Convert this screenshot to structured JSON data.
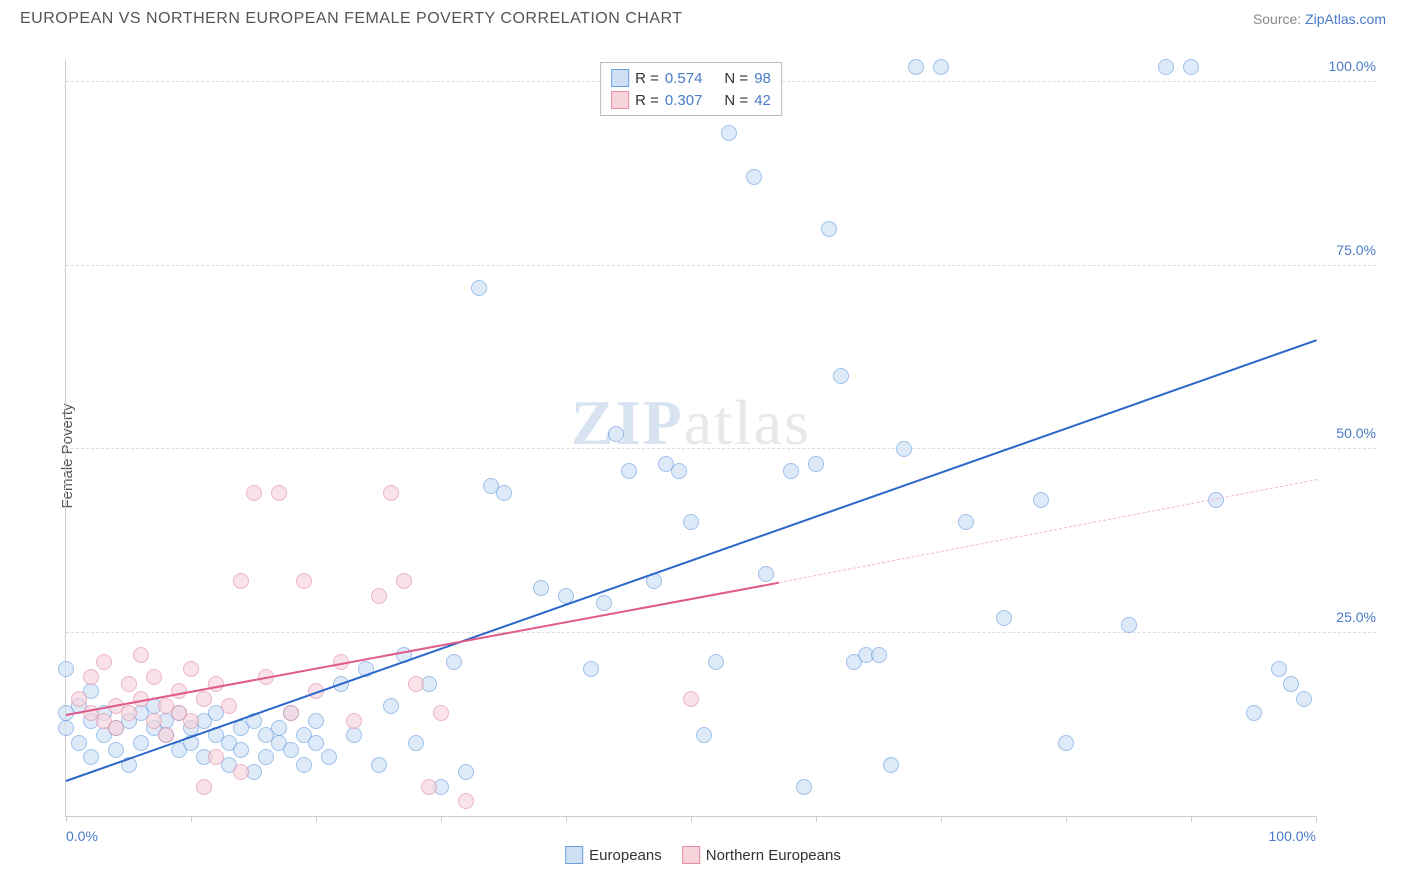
{
  "header": {
    "title": "EUROPEAN VS NORTHERN EUROPEAN FEMALE POVERTY CORRELATION CHART",
    "source_prefix": "Source: ",
    "source_link": "ZipAtlas.com"
  },
  "watermark": {
    "part1": "ZIP",
    "part2": "atlas"
  },
  "chart": {
    "type": "scatter",
    "ylabel": "Female Poverty",
    "background_color": "#ffffff",
    "grid_color": "#dddddd",
    "axis_color": "#cccccc",
    "xlim": [
      0,
      100
    ],
    "ylim": [
      0,
      103
    ],
    "xticks_minor": [
      0,
      10,
      20,
      30,
      40,
      50,
      60,
      70,
      80,
      90,
      100
    ],
    "xtick_labels": [
      {
        "x": 0,
        "label": "0.0%",
        "align": "left"
      },
      {
        "x": 100,
        "label": "100.0%",
        "align": "right"
      }
    ],
    "yticks": [
      {
        "y": 25,
        "label": "25.0%"
      },
      {
        "y": 50,
        "label": "50.0%"
      },
      {
        "y": 75,
        "label": "75.0%"
      },
      {
        "y": 100,
        "label": "100.0%"
      }
    ],
    "marker_radius": 8,
    "marker_border_width": 1.2,
    "series": [
      {
        "key": "europeans",
        "label": "Europeans",
        "fill": "#cfe0f5",
        "stroke": "#6a9fe0",
        "fill_opacity": 0.65,
        "R": "0.574",
        "N": "98",
        "trend": {
          "x1": 0,
          "y1": 5,
          "x2": 100,
          "y2": 65,
          "color": "#2b67c9",
          "width": 2
        },
        "points": [
          [
            0,
            20
          ],
          [
            0,
            12
          ],
          [
            0,
            14
          ],
          [
            1,
            15
          ],
          [
            1,
            10
          ],
          [
            2,
            13
          ],
          [
            2,
            17
          ],
          [
            2,
            8
          ],
          [
            3,
            11
          ],
          [
            3,
            14
          ],
          [
            4,
            12
          ],
          [
            4,
            9
          ],
          [
            5,
            13
          ],
          [
            5,
            7
          ],
          [
            6,
            14
          ],
          [
            6,
            10
          ],
          [
            7,
            12
          ],
          [
            7,
            15
          ],
          [
            8,
            11
          ],
          [
            8,
            13
          ],
          [
            9,
            14
          ],
          [
            9,
            9
          ],
          [
            10,
            12
          ],
          [
            10,
            10
          ],
          [
            11,
            13
          ],
          [
            11,
            8
          ],
          [
            12,
            14
          ],
          [
            12,
            11
          ],
          [
            13,
            10
          ],
          [
            13,
            7
          ],
          [
            14,
            12
          ],
          [
            14,
            9
          ],
          [
            15,
            13
          ],
          [
            15,
            6
          ],
          [
            16,
            11
          ],
          [
            16,
            8
          ],
          [
            17,
            12
          ],
          [
            17,
            10
          ],
          [
            18,
            9
          ],
          [
            18,
            14
          ],
          [
            19,
            11
          ],
          [
            19,
            7
          ],
          [
            20,
            10
          ],
          [
            20,
            13
          ],
          [
            21,
            8
          ],
          [
            22,
            18
          ],
          [
            23,
            11
          ],
          [
            24,
            20
          ],
          [
            25,
            7
          ],
          [
            26,
            15
          ],
          [
            27,
            22
          ],
          [
            28,
            10
          ],
          [
            29,
            18
          ],
          [
            30,
            4
          ],
          [
            31,
            21
          ],
          [
            32,
            6
          ],
          [
            33,
            72
          ],
          [
            34,
            45
          ],
          [
            35,
            44
          ],
          [
            38,
            31
          ],
          [
            40,
            30
          ],
          [
            42,
            20
          ],
          [
            43,
            29
          ],
          [
            44,
            52
          ],
          [
            45,
            47
          ],
          [
            47,
            32
          ],
          [
            48,
            48
          ],
          [
            49,
            47
          ],
          [
            50,
            40
          ],
          [
            51,
            11
          ],
          [
            52,
            21
          ],
          [
            53,
            93
          ],
          [
            55,
            87
          ],
          [
            56,
            33
          ],
          [
            58,
            47
          ],
          [
            59,
            4
          ],
          [
            60,
            48
          ],
          [
            61,
            80
          ],
          [
            62,
            60
          ],
          [
            63,
            21
          ],
          [
            64,
            22
          ],
          [
            65,
            22
          ],
          [
            66,
            7
          ],
          [
            67,
            50
          ],
          [
            68,
            102
          ],
          [
            70,
            102
          ],
          [
            72,
            40
          ],
          [
            75,
            27
          ],
          [
            78,
            43
          ],
          [
            80,
            10
          ],
          [
            85,
            26
          ],
          [
            88,
            102
          ],
          [
            90,
            102
          ],
          [
            92,
            43
          ],
          [
            95,
            14
          ],
          [
            97,
            20
          ],
          [
            98,
            18
          ],
          [
            99,
            16
          ]
        ]
      },
      {
        "key": "northern",
        "label": "Northern Europeans",
        "fill": "#f7d4dc",
        "stroke": "#e390a5",
        "fill_opacity": 0.65,
        "R": "0.307",
        "N": "42",
        "trend_solid": {
          "x1": 0,
          "y1": 14,
          "x2": 57,
          "y2": 32,
          "color": "#e05a8a",
          "width": 2
        },
        "trend_dashed": {
          "x1": 57,
          "y1": 32,
          "x2": 100,
          "y2": 46,
          "color": "#f4b8c8",
          "width": 1.5
        },
        "points": [
          [
            1,
            16
          ],
          [
            2,
            14
          ],
          [
            2,
            19
          ],
          [
            3,
            13
          ],
          [
            3,
            21
          ],
          [
            4,
            15
          ],
          [
            4,
            12
          ],
          [
            5,
            18
          ],
          [
            5,
            14
          ],
          [
            6,
            16
          ],
          [
            6,
            22
          ],
          [
            7,
            13
          ],
          [
            7,
            19
          ],
          [
            8,
            15
          ],
          [
            8,
            11
          ],
          [
            9,
            17
          ],
          [
            9,
            14
          ],
          [
            10,
            20
          ],
          [
            10,
            13
          ],
          [
            11,
            16
          ],
          [
            11,
            4
          ],
          [
            12,
            18
          ],
          [
            12,
            8
          ],
          [
            13,
            15
          ],
          [
            14,
            32
          ],
          [
            14,
            6
          ],
          [
            15,
            44
          ],
          [
            16,
            19
          ],
          [
            17,
            44
          ],
          [
            18,
            14
          ],
          [
            19,
            32
          ],
          [
            20,
            17
          ],
          [
            22,
            21
          ],
          [
            23,
            13
          ],
          [
            25,
            30
          ],
          [
            26,
            44
          ],
          [
            27,
            32
          ],
          [
            28,
            18
          ],
          [
            29,
            4
          ],
          [
            30,
            14
          ],
          [
            32,
            2
          ],
          [
            50,
            16
          ]
        ]
      }
    ],
    "legend_top": {
      "border_color": "#bbbbbb",
      "text_color": "#333333",
      "value_color": "#4a7bc8",
      "rows": [
        {
          "swatch_fill": "#cfe0f5",
          "swatch_stroke": "#6a9fe0",
          "R_label": "R =",
          "R": "0.574",
          "N_label": "N =",
          "N": "98"
        },
        {
          "swatch_fill": "#f7d4dc",
          "swatch_stroke": "#e390a5",
          "R_label": "R =",
          "R": "0.307",
          "N_label": "N =",
          "N": "42"
        }
      ]
    },
    "legend_bottom": {
      "items": [
        {
          "swatch_fill": "#cfe0f5",
          "swatch_stroke": "#6a9fe0",
          "label": "Europeans"
        },
        {
          "swatch_fill": "#f7d4dc",
          "swatch_stroke": "#e390a5",
          "label": "Northern Europeans"
        }
      ]
    }
  }
}
